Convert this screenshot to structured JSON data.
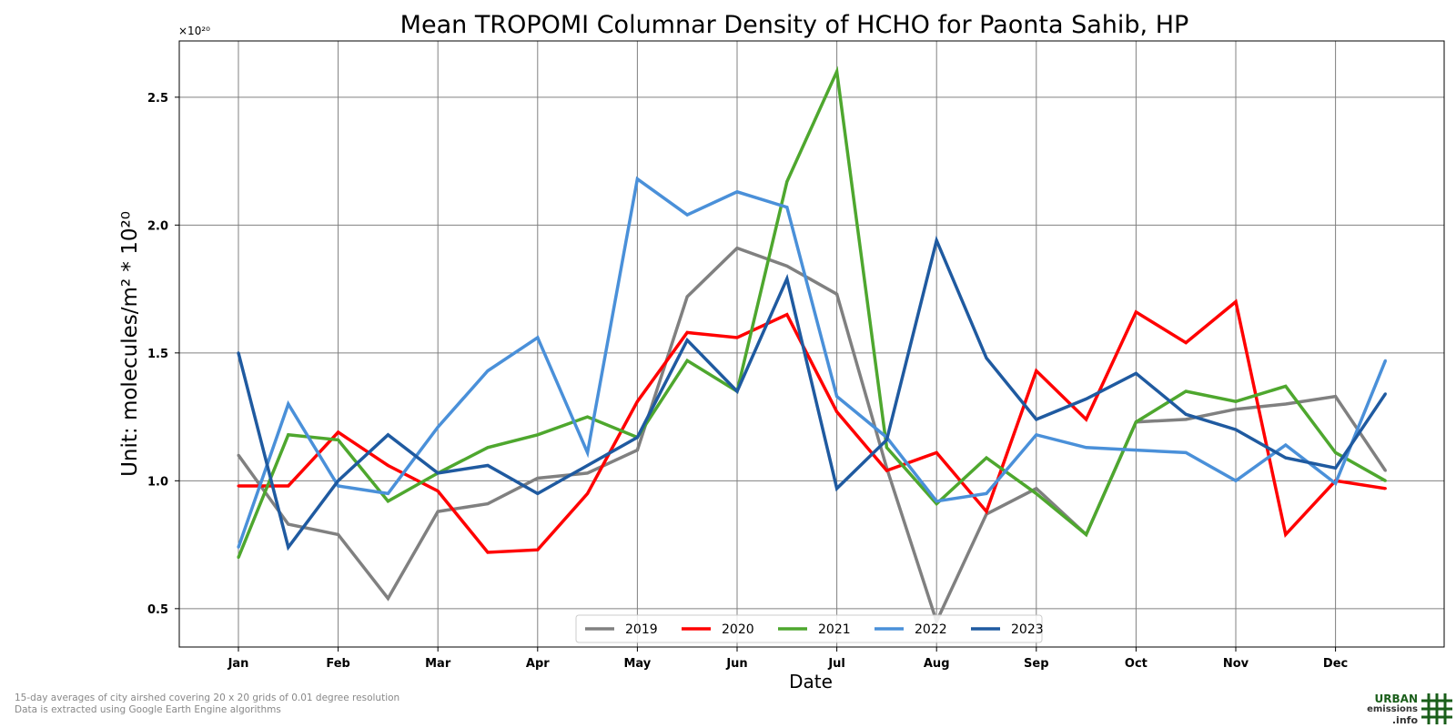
{
  "chart_data": {
    "type": "line",
    "title": "Mean TROPOMI Columnar Density of HCHO for Paonta Sahib, HP",
    "xlabel": "Date",
    "ylabel": "Unit: molecules/m² * 10²⁰",
    "y_offset_text": "×10²⁰",
    "x_tick_labels": [
      "Jan",
      "Feb",
      "Mar",
      "Apr",
      "May",
      "Jun",
      "Jul",
      "Aug",
      "Sep",
      "Oct",
      "Nov",
      "Dec"
    ],
    "y_tick_labels": [
      "0.5",
      "1.0",
      "1.5",
      "2.0",
      "2.5"
    ],
    "y_ticks": [
      0.5,
      1.0,
      1.5,
      2.0,
      2.5
    ],
    "ylim": [
      0.35,
      2.72
    ],
    "grid": true,
    "legend_position": "bottom-center",
    "x_periods": [
      "Jan 1-15",
      "Jan 16-31",
      "Feb 1-15",
      "Feb 16-28",
      "Mar 1-15",
      "Mar 16-31",
      "Apr 1-15",
      "Apr 16-30",
      "May 1-15",
      "May 16-31",
      "Jun 1-15",
      "Jun 16-30",
      "Jul 1-15",
      "Jul 16-31",
      "Aug 1-15",
      "Aug 16-31",
      "Sep 1-15",
      "Sep 16-30",
      "Oct 1-15",
      "Oct 16-31",
      "Nov 1-15",
      "Nov 16-30",
      "Dec 1-15",
      "Dec 16-31"
    ],
    "series": [
      {
        "name": "2019",
        "color": "#808080",
        "values": [
          1.1,
          0.83,
          0.79,
          0.54,
          0.88,
          0.91,
          1.01,
          1.03,
          1.12,
          1.72,
          1.91,
          1.84,
          1.73,
          1.05,
          0.45,
          0.87,
          0.97,
          0.79,
          1.23,
          1.24,
          1.28,
          1.3,
          1.33,
          1.04
        ]
      },
      {
        "name": "2020",
        "color": "#ff0000",
        "values": [
          0.98,
          0.98,
          1.19,
          1.06,
          0.96,
          0.72,
          0.73,
          0.95,
          1.31,
          1.58,
          1.56,
          1.65,
          1.27,
          1.04,
          1.11,
          0.88,
          1.43,
          1.24,
          1.66,
          1.54,
          1.7,
          0.79,
          1.0,
          0.97
        ]
      },
      {
        "name": "2021",
        "color": "#4ea72e",
        "values": [
          0.7,
          1.18,
          1.16,
          0.92,
          1.03,
          1.13,
          1.18,
          1.25,
          1.17,
          1.47,
          1.35,
          2.17,
          2.6,
          1.13,
          0.91,
          1.09,
          0.95,
          0.79,
          1.23,
          1.35,
          1.31,
          1.37,
          1.11,
          1.0
        ]
      },
      {
        "name": "2022",
        "color": "#4a90d9",
        "values": [
          0.74,
          1.3,
          0.98,
          0.95,
          1.21,
          1.43,
          1.56,
          1.11,
          2.18,
          2.04,
          2.13,
          2.07,
          1.33,
          1.17,
          0.92,
          0.95,
          1.18,
          1.13,
          1.12,
          1.11,
          1.0,
          1.14,
          0.99,
          1.47
        ]
      },
      {
        "name": "2023",
        "color": "#1f5aa0",
        "values": [
          1.5,
          0.74,
          1.0,
          1.18,
          1.03,
          1.06,
          0.95,
          1.06,
          1.17,
          1.55,
          1.35,
          1.79,
          0.97,
          1.16,
          1.94,
          1.48,
          1.24,
          1.32,
          1.42,
          1.26,
          1.2,
          1.09,
          1.05,
          1.34
        ]
      }
    ]
  },
  "footnotes": {
    "line1": "15-day averages of city airshed covering 20 x 20 grids of 0.01 degree resolution",
    "line2": "Data is extracted using Google Earth Engine algorithms"
  },
  "logo": {
    "line1": "URBAN",
    "line2": "emissions",
    "line3": ".info",
    "color": "#1a5e1a"
  }
}
